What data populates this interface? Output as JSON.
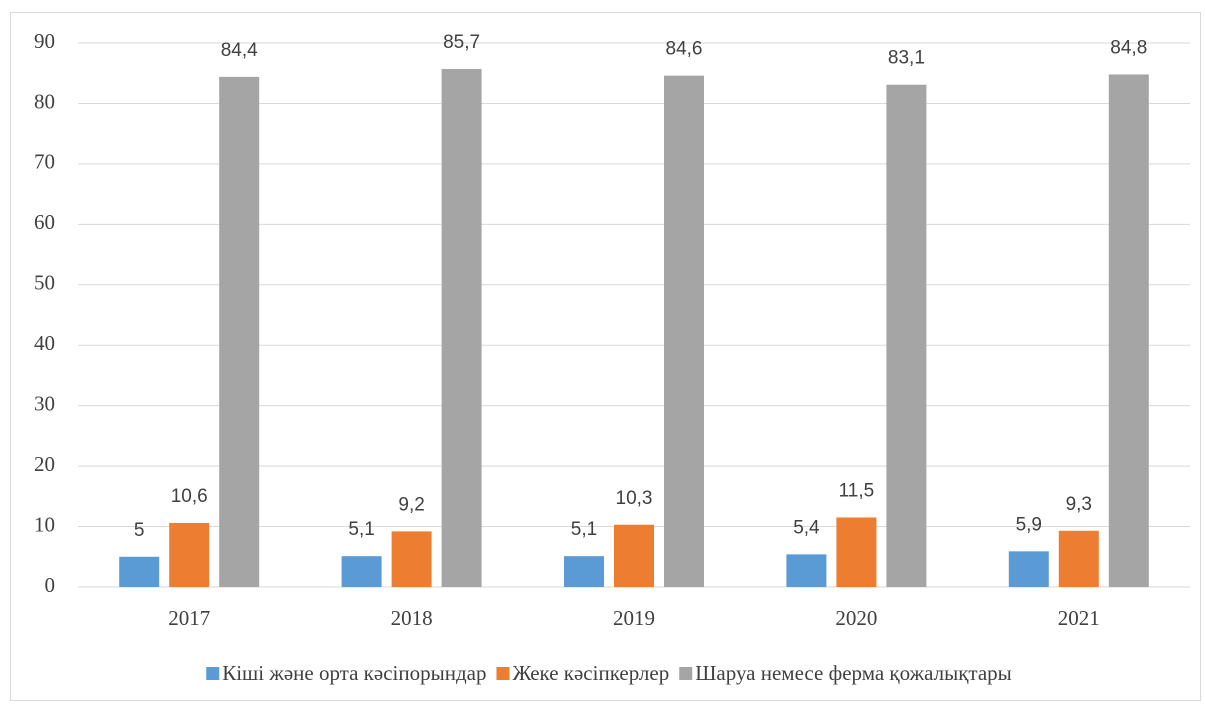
{
  "chart_data": {
    "type": "bar",
    "categories": [
      "2017",
      "2018",
      "2019",
      "2020",
      "2021"
    ],
    "series": [
      {
        "name": "Кіші және орта кәсіпорындар",
        "color": "#5b9bd5",
        "values": [
          5,
          5.1,
          5.1,
          5.4,
          5.9
        ],
        "value_labels": [
          "5",
          "5,1",
          "5,1",
          "5,4",
          "5,9"
        ]
      },
      {
        "name": "Жеке кәсіпкерлер",
        "color": "#ed7d31",
        "values": [
          10.6,
          9.2,
          10.3,
          11.5,
          9.3
        ],
        "value_labels": [
          "10,6",
          "9,2",
          "10,3",
          "11,5",
          "9,3"
        ]
      },
      {
        "name": "Шаруа немесе ферма қожалықтары",
        "color": "#a5a5a5",
        "values": [
          84.4,
          85.7,
          84.6,
          83.1,
          84.8
        ],
        "value_labels": [
          "84,4",
          "85,7",
          "84,6",
          "83,1",
          "84,8"
        ]
      }
    ],
    "ylim": [
      0,
      90
    ],
    "yticks": [
      0,
      10,
      20,
      30,
      40,
      50,
      60,
      70,
      80,
      90
    ],
    "grid": true,
    "legend": "bottom"
  }
}
